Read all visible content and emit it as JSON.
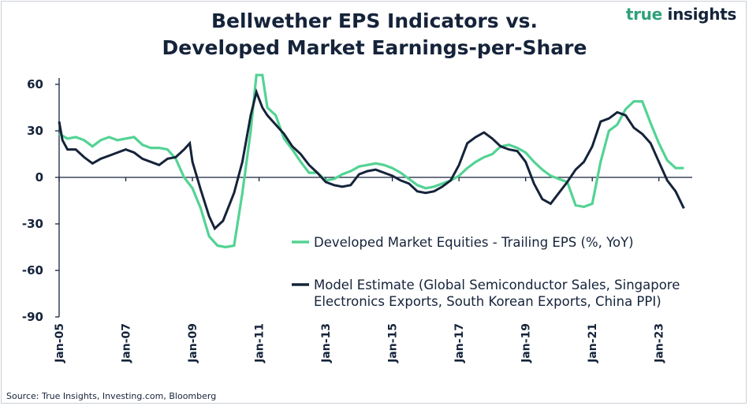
{
  "header": {
    "title_line1": "Bellwether EPS Indicators vs.",
    "title_line2": "Developed Market Earnings-per-Share"
  },
  "brand": {
    "part1": "true",
    "part2": " insights"
  },
  "footer": {
    "source": "Source: True Insights, Investing.com, Bloomberg"
  },
  "colors": {
    "eps": "#53d394",
    "model": "#15233a",
    "text": "#15233a",
    "accent": "#2fa07a"
  },
  "chart_data": {
    "type": "line",
    "title": "Bellwether EPS Indicators vs. Developed Market Earnings-per-Share",
    "xlabel": "",
    "ylabel": "",
    "ylim": [
      -90,
      60
    ],
    "xlim": [
      2005.0,
      2024.0
    ],
    "yticks": [
      60,
      30,
      0,
      -30,
      -60,
      -90
    ],
    "ytick_labels": [
      "60",
      "30",
      "0",
      "-30",
      "-60",
      "-90"
    ],
    "xticks": [
      2005,
      2007,
      2009,
      2011,
      2013,
      2015,
      2017,
      2019,
      2021,
      2023
    ],
    "xtick_labels": [
      "Jan-05",
      "Jan-07",
      "Jan-09",
      "Jan-11",
      "Jan-13",
      "Jan-15",
      "Jan-17",
      "Jan-19",
      "Jan-21",
      "Jan-23"
    ],
    "grid": false,
    "legend_position": "bottom-right",
    "series": [
      {
        "name": "Developed Market Equities - Trailing EPS (%, YoY)",
        "color": "#53d394",
        "points": [
          [
            2005.0,
            28
          ],
          [
            2005.25,
            25
          ],
          [
            2005.5,
            26
          ],
          [
            2005.75,
            24
          ],
          [
            2006.0,
            20
          ],
          [
            2006.25,
            24
          ],
          [
            2006.5,
            26
          ],
          [
            2006.75,
            24
          ],
          [
            2007.0,
            25
          ],
          [
            2007.25,
            26
          ],
          [
            2007.5,
            21
          ],
          [
            2007.75,
            19
          ],
          [
            2008.0,
            19
          ],
          [
            2008.25,
            18
          ],
          [
            2008.5,
            12
          ],
          [
            2008.75,
            0
          ],
          [
            2009.0,
            -7
          ],
          [
            2009.25,
            -20
          ],
          [
            2009.5,
            -38
          ],
          [
            2009.75,
            -44
          ],
          [
            2010.0,
            -45
          ],
          [
            2010.25,
            -44
          ],
          [
            2010.5,
            -10
          ],
          [
            2010.75,
            30
          ],
          [
            2010.92,
            66
          ],
          [
            2011.1,
            66
          ],
          [
            2011.25,
            45
          ],
          [
            2011.5,
            40
          ],
          [
            2011.75,
            25
          ],
          [
            2012.0,
            18
          ],
          [
            2012.25,
            10
          ],
          [
            2012.5,
            3
          ],
          [
            2012.75,
            3
          ],
          [
            2013.0,
            -2
          ],
          [
            2013.25,
            -1
          ],
          [
            2013.5,
            2
          ],
          [
            2013.75,
            4
          ],
          [
            2014.0,
            7
          ],
          [
            2014.25,
            8
          ],
          [
            2014.5,
            9
          ],
          [
            2014.75,
            8
          ],
          [
            2015.0,
            6
          ],
          [
            2015.25,
            3
          ],
          [
            2015.5,
            -1
          ],
          [
            2015.75,
            -5
          ],
          [
            2016.0,
            -7
          ],
          [
            2016.25,
            -6
          ],
          [
            2016.5,
            -4
          ],
          [
            2016.75,
            -2
          ],
          [
            2017.0,
            1
          ],
          [
            2017.25,
            6
          ],
          [
            2017.5,
            10
          ],
          [
            2017.75,
            13
          ],
          [
            2018.0,
            15
          ],
          [
            2018.25,
            20
          ],
          [
            2018.5,
            21
          ],
          [
            2018.75,
            19
          ],
          [
            2019.0,
            16
          ],
          [
            2019.25,
            10
          ],
          [
            2019.5,
            5
          ],
          [
            2019.75,
            1
          ],
          [
            2020.0,
            -1
          ],
          [
            2020.25,
            -3
          ],
          [
            2020.5,
            -18
          ],
          [
            2020.75,
            -19
          ],
          [
            2021.0,
            -17
          ],
          [
            2021.25,
            10
          ],
          [
            2021.5,
            30
          ],
          [
            2021.75,
            34
          ],
          [
            2022.0,
            44
          ],
          [
            2022.25,
            49
          ],
          [
            2022.5,
            49
          ],
          [
            2022.75,
            35
          ],
          [
            2023.0,
            22
          ],
          [
            2023.25,
            11
          ],
          [
            2023.5,
            6
          ],
          [
            2023.75,
            6
          ]
        ]
      },
      {
        "name": "Model Estimate (Global Semiconductor Sales, Singapore Electronics Exports, South Korean Exports, China PPI)",
        "color": "#15233a",
        "points": [
          [
            2005.0,
            36
          ],
          [
            2005.1,
            24
          ],
          [
            2005.25,
            18
          ],
          [
            2005.5,
            18
          ],
          [
            2005.75,
            13
          ],
          [
            2006.0,
            9
          ],
          [
            2006.25,
            12
          ],
          [
            2006.5,
            14
          ],
          [
            2006.75,
            16
          ],
          [
            2007.0,
            18
          ],
          [
            2007.25,
            16
          ],
          [
            2007.5,
            12
          ],
          [
            2007.75,
            10
          ],
          [
            2008.0,
            8
          ],
          [
            2008.25,
            12
          ],
          [
            2008.5,
            13
          ],
          [
            2008.75,
            18
          ],
          [
            2008.92,
            22
          ],
          [
            2009.0,
            10
          ],
          [
            2009.25,
            -8
          ],
          [
            2009.5,
            -25
          ],
          [
            2009.67,
            -33
          ],
          [
            2009.92,
            -28
          ],
          [
            2010.25,
            -10
          ],
          [
            2010.5,
            10
          ],
          [
            2010.75,
            40
          ],
          [
            2010.92,
            55
          ],
          [
            2011.1,
            45
          ],
          [
            2011.25,
            40
          ],
          [
            2011.5,
            34
          ],
          [
            2011.75,
            28
          ],
          [
            2012.0,
            20
          ],
          [
            2012.25,
            15
          ],
          [
            2012.5,
            8
          ],
          [
            2012.75,
            3
          ],
          [
            2013.0,
            -3
          ],
          [
            2013.25,
            -5
          ],
          [
            2013.5,
            -6
          ],
          [
            2013.75,
            -5
          ],
          [
            2014.0,
            2
          ],
          [
            2014.25,
            4
          ],
          [
            2014.5,
            5
          ],
          [
            2014.75,
            3
          ],
          [
            2015.0,
            1
          ],
          [
            2015.25,
            -2
          ],
          [
            2015.5,
            -4
          ],
          [
            2015.75,
            -9
          ],
          [
            2016.0,
            -10
          ],
          [
            2016.25,
            -9
          ],
          [
            2016.5,
            -6
          ],
          [
            2016.75,
            -2
          ],
          [
            2017.0,
            8
          ],
          [
            2017.25,
            22
          ],
          [
            2017.5,
            26
          ],
          [
            2017.75,
            29
          ],
          [
            2018.0,
            25
          ],
          [
            2018.25,
            20
          ],
          [
            2018.5,
            18
          ],
          [
            2018.75,
            17
          ],
          [
            2019.0,
            10
          ],
          [
            2019.25,
            -4
          ],
          [
            2019.5,
            -14
          ],
          [
            2019.75,
            -17
          ],
          [
            2020.0,
            -10
          ],
          [
            2020.25,
            -3
          ],
          [
            2020.5,
            5
          ],
          [
            2020.75,
            10
          ],
          [
            2021.0,
            20
          ],
          [
            2021.25,
            36
          ],
          [
            2021.5,
            38
          ],
          [
            2021.75,
            42
          ],
          [
            2022.0,
            40
          ],
          [
            2022.25,
            32
          ],
          [
            2022.5,
            28
          ],
          [
            2022.75,
            22
          ],
          [
            2023.0,
            10
          ],
          [
            2023.25,
            -2
          ],
          [
            2023.5,
            -9
          ],
          [
            2023.75,
            -20
          ]
        ]
      }
    ],
    "legend": [
      {
        "lines": [
          "Developed Market Equities - Trailing EPS (%, YoY)"
        ]
      },
      {
        "lines": [
          "Model Estimate (Global Semiconductor Sales, Singapore",
          "Electronics Exports, South Korean Exports, China PPI)"
        ]
      }
    ]
  }
}
